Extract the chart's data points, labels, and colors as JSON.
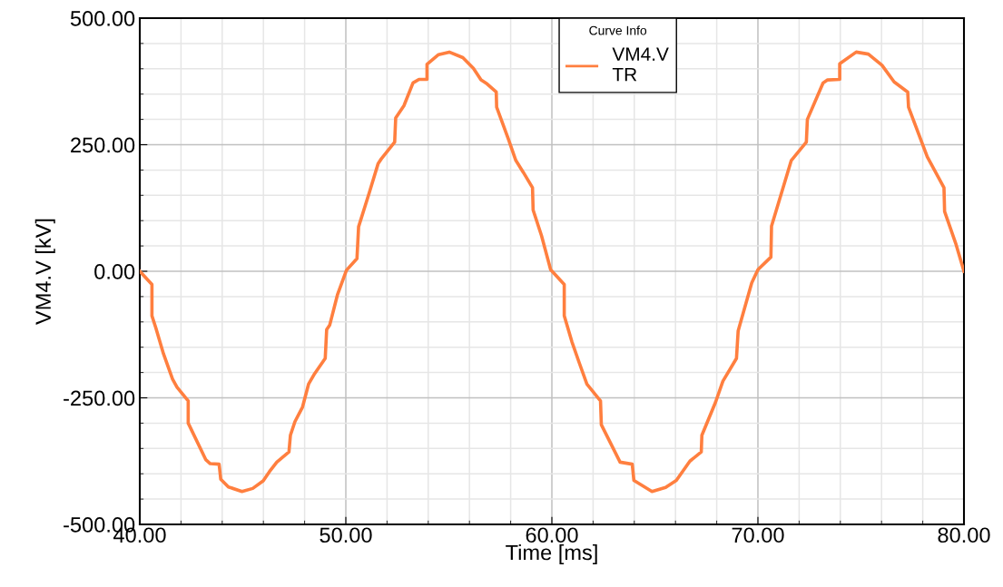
{
  "chart_data": {
    "type": "line",
    "xlabel": "Time [ms]",
    "ylabel": "VM4.V [kV]",
    "legend_title": "Curve Info",
    "legend": "top",
    "grid": true,
    "line_style": "solid",
    "marker": "none",
    "xlim": [
      40,
      80
    ],
    "ylim": [
      -500,
      500
    ],
    "xticks": [
      {
        "value": 40,
        "label": "40.00"
      },
      {
        "value": 50,
        "label": "50.00"
      },
      {
        "value": 60,
        "label": "60.00"
      },
      {
        "value": 70,
        "label": "70.00"
      },
      {
        "value": 80,
        "label": "80.00"
      }
    ],
    "yticks": [
      {
        "value": -500,
        "label": "-500.00"
      },
      {
        "value": -250,
        "label": "-250.00"
      },
      {
        "value": 0,
        "label": "0.00"
      },
      {
        "value": 250,
        "label": "250.00"
      },
      {
        "value": 500,
        "label": "500.00"
      }
    ],
    "x": [
      40.0,
      40.59,
      40.59,
      40.78,
      41.15,
      41.59,
      41.81,
      42.35,
      42.35,
      43.2,
      43.42,
      43.85,
      43.93,
      44.3,
      44.96,
      45.48,
      45.99,
      46.29,
      46.65,
      47.24,
      47.31,
      47.53,
      47.9,
      48.19,
      48.49,
      49.0,
      49.07,
      49.22,
      49.59,
      50.03,
      50.54,
      50.62,
      51.13,
      51.57,
      51.72,
      52.37,
      52.42,
      52.82,
      53.26,
      53.55,
      53.94,
      53.94,
      54.5,
      55.02,
      55.68,
      56.19,
      56.56,
      56.86,
      57.3,
      57.32,
      57.89,
      58.25,
      58.62,
      59.06,
      59.09,
      59.5,
      59.94,
      60.6,
      60.6,
      60.97,
      61.33,
      61.7,
      62.36,
      62.4,
      63.31,
      63.9,
      63.98,
      64.86,
      65.52,
      66.04,
      66.7,
      67.25,
      67.28,
      67.94,
      68.3,
      68.96,
      69.04,
      69.7,
      70.0,
      70.63,
      70.66,
      71.62,
      72.35,
      72.4,
      73.16,
      73.38,
      73.97,
      73.97,
      74.77,
      75.36,
      76.02,
      76.61,
      77.27,
      77.31,
      78.22,
      79.03,
      79.06,
      79.6,
      80.0
    ],
    "series": [
      {
        "name": "VM4.V\nTR",
        "color": "#ff7f3f",
        "values": [
          0,
          -26,
          -88,
          -112,
          -163,
          -213,
          -229,
          -256,
          -300,
          -372,
          -380,
          -381,
          -411,
          -426,
          -435,
          -429,
          -414,
          -396,
          -377,
          -357,
          -324,
          -297,
          -268,
          -223,
          -202,
          -172,
          -115,
          -106,
          -47,
          2,
          25,
          88,
          154,
          213,
          222,
          255,
          303,
          327,
          372,
          379,
          379,
          409,
          428,
          433,
          422,
          401,
          378,
          370,
          354,
          324,
          261,
          219,
          195,
          165,
          121,
          70,
          3,
          -26,
          -88,
          -139,
          -181,
          -223,
          -256,
          -303,
          -377,
          -381,
          -413,
          -435,
          -427,
          -413,
          -375,
          -357,
          -324,
          -259,
          -217,
          -172,
          -118,
          -23,
          3,
          28,
          89,
          219,
          255,
          300,
          372,
          378,
          379,
          410,
          433,
          429,
          407,
          374,
          354,
          324,
          226,
          165,
          118,
          55,
          0
        ]
      }
    ]
  }
}
